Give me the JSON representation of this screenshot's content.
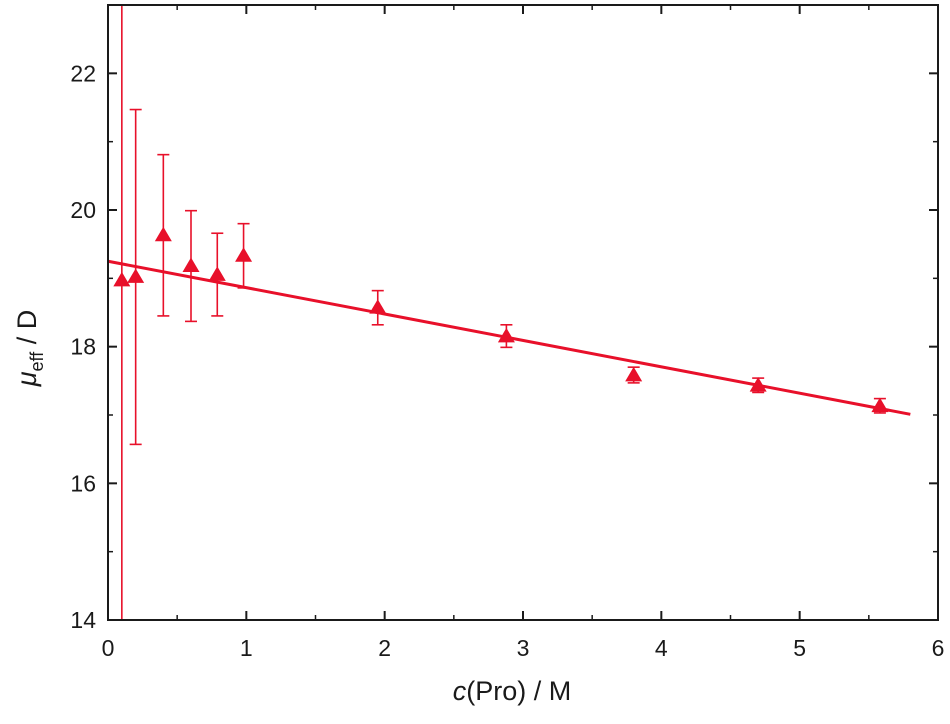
{
  "chart_data": {
    "type": "scatter",
    "xlabel": {
      "var": "c",
      "rest": "(Pro)  /  M"
    },
    "ylabel": {
      "var": "μ",
      "sub": "eff",
      "rest": "  /  D"
    },
    "xlim": [
      0,
      6
    ],
    "ylim": [
      14,
      23
    ],
    "xticks": [
      0,
      1,
      2,
      3,
      4,
      5,
      6
    ],
    "yticks": [
      14,
      16,
      18,
      20,
      22
    ],
    "grid": false,
    "color": "#e8102a",
    "marker": "triangle",
    "points": [
      {
        "x": 0.1,
        "y": 18.97,
        "err_low": 14.0,
        "err_high": 23.0
      },
      {
        "x": 0.2,
        "y": 19.02,
        "err_low": 16.57,
        "err_high": 21.47
      },
      {
        "x": 0.4,
        "y": 19.63,
        "err_low": 18.45,
        "err_high": 20.81
      },
      {
        "x": 0.6,
        "y": 19.18,
        "err_low": 18.37,
        "err_high": 19.99
      },
      {
        "x": 0.79,
        "y": 19.05,
        "err_low": 18.45,
        "err_high": 19.66
      },
      {
        "x": 0.98,
        "y": 19.33,
        "err_low": 18.86,
        "err_high": 19.8
      },
      {
        "x": 1.95,
        "y": 18.57,
        "err_low": 18.32,
        "err_high": 18.82
      },
      {
        "x": 2.88,
        "y": 18.15,
        "err_low": 17.99,
        "err_high": 18.32
      },
      {
        "x": 3.8,
        "y": 17.58,
        "err_low": 17.47,
        "err_high": 17.7
      },
      {
        "x": 4.7,
        "y": 17.43,
        "err_low": 17.33,
        "err_high": 17.54
      },
      {
        "x": 5.58,
        "y": 17.13,
        "err_low": 17.03,
        "err_high": 17.24
      }
    ],
    "fit_line": {
      "type": "linear",
      "x": [
        0,
        5.8
      ],
      "y": [
        19.25,
        17.01
      ]
    }
  }
}
